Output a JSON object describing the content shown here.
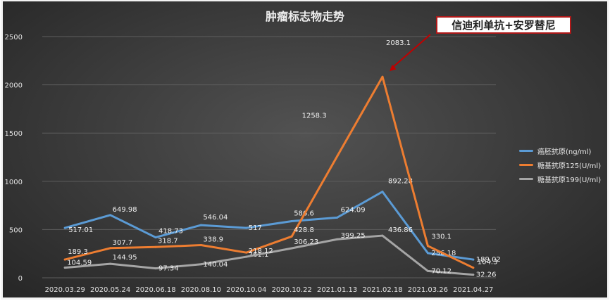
{
  "chart_data": {
    "type": "line",
    "title": "肿瘤标志物走势",
    "categories": [
      "2020.03.29",
      "2020.05.24",
      "2020.06.18",
      "2020.08.10",
      "2020.10.04",
      "2020.10.22",
      "2021.01.13",
      "2021.02.18",
      "2021.03.26",
      "2021.04.27"
    ],
    "ylim": [
      0,
      2500
    ],
    "yticks": [
      0,
      500,
      1000,
      1500,
      2000,
      2500
    ],
    "grid": true,
    "legend_position": "right",
    "series": [
      {
        "name": "癌胚抗原(ng/ml)",
        "color": "#5b9bd5",
        "values": [
          517.01,
          649.98,
          418.73,
          546.04,
          517,
          586.6,
          624.09,
          892.28,
          256.18,
          189.02
        ],
        "labels": [
          "517.01",
          "649.98",
          "418.73",
          "546.04",
          "517",
          "586.6",
          "624.09",
          "892.28",
          "256.18",
          "189.02"
        ]
      },
      {
        "name": "糖基抗原125(U/ml)",
        "color": "#ed7d31",
        "values": [
          189.3,
          307.7,
          318.7,
          338.9,
          261.1,
          428.8,
          1258.3,
          2083.1,
          330.1,
          104.3
        ],
        "labels": [
          "189.3",
          "307.7",
          "318.7",
          "338.9",
          "261.1",
          "428.8",
          "1258.3",
          "2083.1",
          "330.1",
          "104.3"
        ]
      },
      {
        "name": "糖基抗原199(U/ml)",
        "color": "#a5a5a5",
        "values": [
          104.59,
          144.95,
          97.34,
          140.04,
          218.12,
          306.23,
          399.25,
          436.86,
          70.12,
          32.26
        ],
        "labels": [
          "104.59",
          "144.95",
          "97.34",
          "140.04",
          "218.12",
          "306.23",
          "399.25",
          "436.86",
          "70.12",
          "32.26"
        ]
      }
    ],
    "annotation": {
      "text": "信迪利单抗+安罗替尼",
      "target_category": "2021.02.18",
      "target_series": 1,
      "color": "#c00000"
    }
  }
}
